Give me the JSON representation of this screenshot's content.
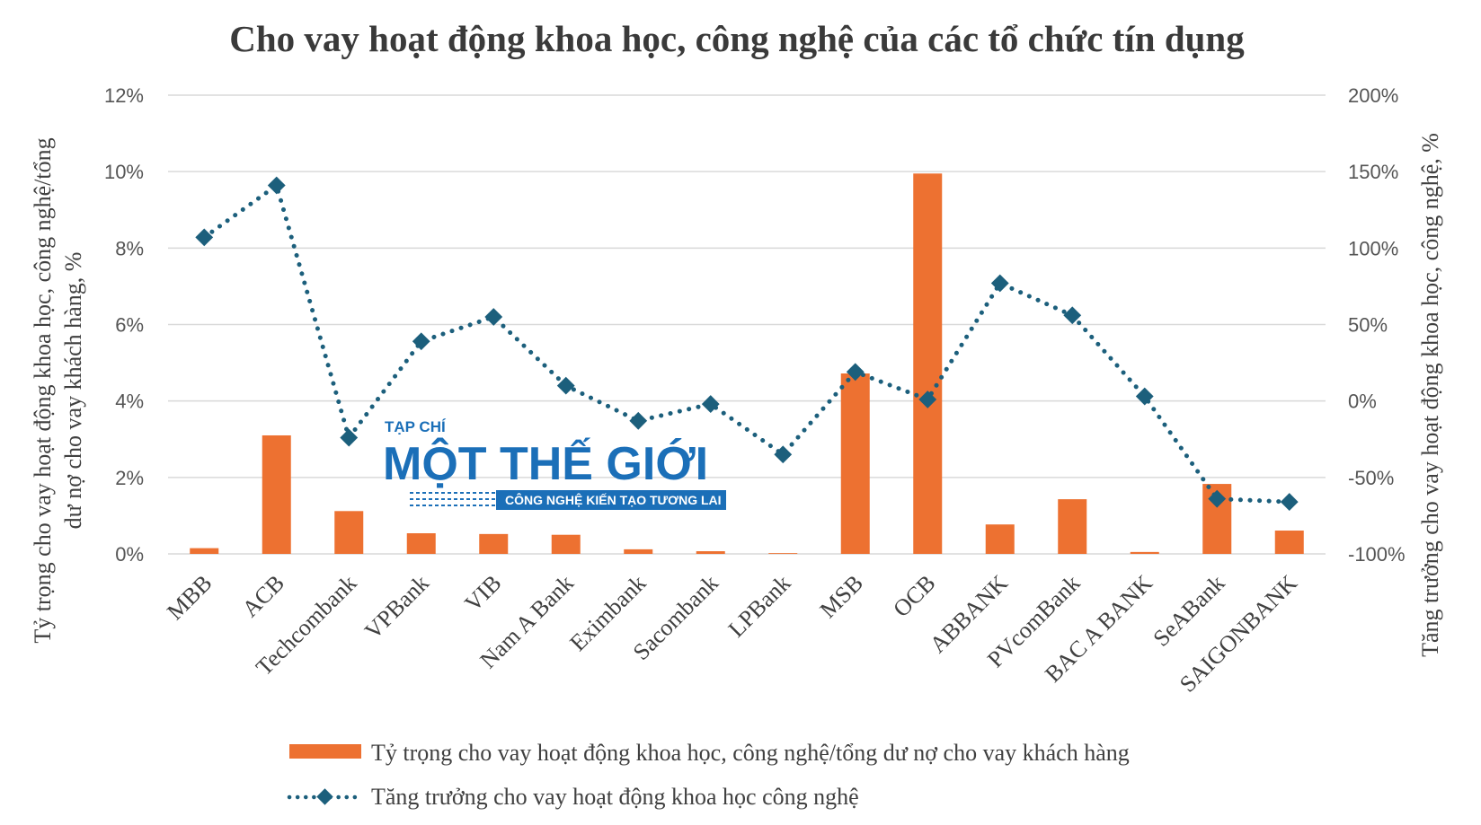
{
  "chart_data": {
    "type": "bar",
    "title": "Cho vay hoạt động khoa học, công nghệ của các tổ chức tín dụng",
    "categories": [
      "MBB",
      "ACB",
      "Techcombank",
      "VPBank",
      "VIB",
      "Nam A Bank",
      "Eximbank",
      "Sacombank",
      "LPBank",
      "MSB",
      "OCB",
      "ABBANK",
      "PVcomBank",
      "BAC A BANK",
      "SeABank",
      "SAIGONBANK"
    ],
    "y_left": {
      "label_line1": "Tỷ trọng cho vay hoạt động khoa học, công nghệ/tổng",
      "label_line2": "dư nợ cho vay khách hàng, %",
      "range": [
        0,
        12
      ],
      "tick_values": [
        0,
        2,
        4,
        6,
        8,
        10,
        12
      ],
      "tick_labels": [
        "0%",
        "2%",
        "4%",
        "6%",
        "8%",
        "10%",
        "12%"
      ]
    },
    "y_right": {
      "label": "Tăng trưởng cho vay hoạt động khoa học, công nghệ, %",
      "range": [
        -100,
        200
      ],
      "tick_values": [
        -100,
        -50,
        0,
        50,
        100,
        150,
        200
      ],
      "tick_labels": [
        "-100%",
        "-50%",
        "0%",
        "50%",
        "100%",
        "150%",
        "200%"
      ]
    },
    "grid": true,
    "legend_position": "bottom",
    "series": [
      {
        "name": "Tỷ trọng cho vay hoạt động khoa học, công nghệ/tổng dư nợ cho vay khách hàng",
        "type": "bar",
        "axis": "left",
        "color": "#ed7131",
        "values": [
          0.15,
          3.1,
          1.12,
          0.54,
          0.52,
          0.5,
          0.12,
          0.07,
          0.02,
          4.72,
          9.95,
          0.77,
          1.43,
          0.05,
          1.83,
          0.61
        ]
      },
      {
        "name": "Tăng trưởng cho vay hoạt động khoa học công nghệ",
        "type": "line",
        "axis": "right",
        "color": "#1c5f7c",
        "style": "dotted-diamond",
        "values": [
          107,
          141,
          -24,
          39,
          55,
          10,
          -13,
          -2,
          -35,
          19,
          1,
          77,
          56,
          3,
          -64,
          -66
        ]
      }
    ]
  },
  "watermark": {
    "small": "TẠP CHÍ",
    "big": "MỘT THẾ GIỚI",
    "tagline": "CÔNG NGHỆ KIẾN TẠO TƯƠNG LAI"
  }
}
